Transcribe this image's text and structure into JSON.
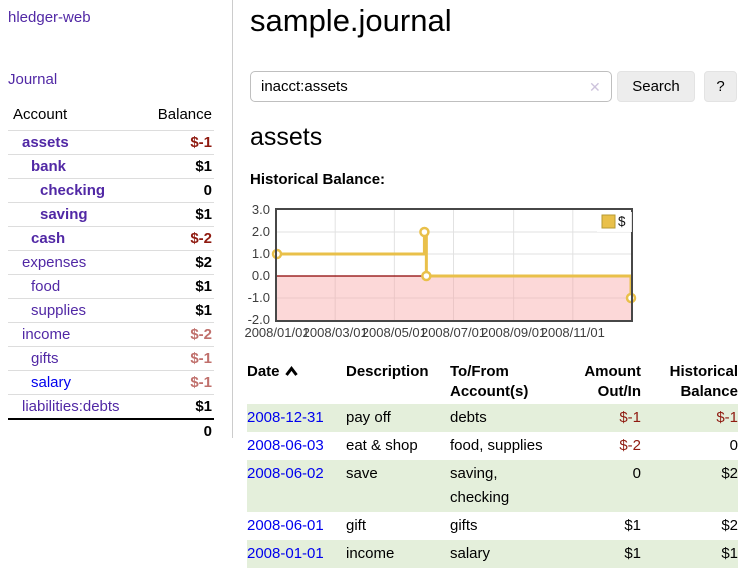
{
  "sidebar": {
    "app_title": "hledger-web",
    "nav": {
      "journal_label": "Journal"
    },
    "accounts_table": {
      "headers": {
        "account": "Account",
        "balance": "Balance"
      },
      "rows": [
        {
          "name": "assets",
          "depth": 1,
          "bold": true,
          "color": "purple",
          "balance": "$-1",
          "bclass": "neg"
        },
        {
          "name": "bank",
          "depth": 2,
          "bold": true,
          "color": "purple",
          "balance": "$1",
          "bclass": ""
        },
        {
          "name": "checking",
          "depth": 3,
          "bold": true,
          "color": "purple",
          "balance": "0",
          "bclass": ""
        },
        {
          "name": "saving",
          "depth": 3,
          "bold": true,
          "color": "purple",
          "balance": "$1",
          "bclass": ""
        },
        {
          "name": "cash",
          "depth": 2,
          "bold": true,
          "color": "purple",
          "balance": "$-2",
          "bclass": "neg"
        },
        {
          "name": "expenses",
          "depth": 1,
          "bold": false,
          "color": "purple",
          "balance": "$2",
          "bclass": ""
        },
        {
          "name": "food",
          "depth": 2,
          "bold": false,
          "color": "purple",
          "balance": "$1",
          "bclass": ""
        },
        {
          "name": "supplies",
          "depth": 2,
          "bold": false,
          "color": "purple",
          "balance": "$1",
          "bclass": ""
        },
        {
          "name": "income",
          "depth": 1,
          "bold": false,
          "color": "purple",
          "balance": "$-2",
          "bclass": "neg-muted"
        },
        {
          "name": "gifts",
          "depth": 2,
          "bold": false,
          "color": "purple",
          "balance": "$-1",
          "bclass": "neg-muted"
        },
        {
          "name": "salary",
          "depth": 2,
          "bold": false,
          "color": "blue",
          "balance": "$-1",
          "bclass": "neg-muted"
        },
        {
          "name": "liabilities:debts",
          "depth": 1,
          "bold": false,
          "color": "purple",
          "balance": "$1",
          "bclass": ""
        }
      ],
      "total": "0"
    }
  },
  "main": {
    "title": "sample.journal",
    "search": {
      "value": "inacct:assets",
      "clear_icon": "✕",
      "button_label": "Search",
      "help_label": "?"
    },
    "account_heading": "assets",
    "chart_label": "Historical Balance:"
  },
  "chart_data": {
    "type": "line",
    "step": true,
    "title": "Historical Balance of assets",
    "series": [
      {
        "name": "$",
        "points": [
          [
            "2008-01-01",
            1
          ],
          [
            "2008-06-01",
            2
          ],
          [
            "2008-06-03",
            0
          ],
          [
            "2008-12-31",
            -1
          ]
        ]
      }
    ],
    "ylim": [
      -2,
      3
    ],
    "y_tick_labels": [
      "3.0",
      "2.0",
      "1.0",
      "0.0",
      "-1.0",
      "-2.0"
    ],
    "y_tick_values": [
      3,
      2,
      1,
      0,
      -1,
      -2
    ],
    "x_tick_labels": [
      "2008/01/01",
      "2008/03/01",
      "2008/05/01",
      "2008/07/01",
      "2008/09/01",
      "2008/11/01"
    ],
    "x_tick_dates": [
      "2008-01-01",
      "2008-03-01",
      "2008-05-01",
      "2008-07-01",
      "2008-09-01",
      "2008-11-01"
    ],
    "x_range": [
      "2008-01-01",
      "2008-12-31"
    ],
    "grid": true,
    "legend": {
      "label": "$",
      "position": "top-right"
    },
    "colors": {
      "line": "#e9c04a",
      "point_fill": "#ffffff",
      "legend_square": "#e9c04a",
      "legend_border": "#b69a33",
      "negative_region": "rgba(249,163,163,0.42)",
      "zero_line": "#8b0000",
      "grid": "#e2e2e2",
      "frame": "#474747"
    }
  },
  "register_table": {
    "headers": [
      {
        "line1": "Date",
        "line2": ""
      },
      {
        "line1": "Description",
        "line2": ""
      },
      {
        "line1": "To/From",
        "line2": "Account(s)"
      },
      {
        "line1": "Amount",
        "line2": "Out/In"
      },
      {
        "line1": "Historical",
        "line2": "Balance"
      }
    ],
    "sort_icon": "chevron-up",
    "rows": [
      {
        "date": "2008-12-31",
        "description": "pay off",
        "accounts": "debts",
        "amount": "$-1",
        "balance": "$-1",
        "shaded": true
      },
      {
        "date": "2008-06-03",
        "description": "eat & shop",
        "accounts": "food, supplies",
        "amount": "$-2",
        "balance": "0",
        "shaded": false
      },
      {
        "date": "2008-06-02",
        "description": "save",
        "accounts": "saving, checking",
        "amount": "0",
        "balance": "$2",
        "shaded": true
      },
      {
        "date": "2008-06-01",
        "description": "gift",
        "accounts": "gifts",
        "amount": "$1",
        "balance": "$2",
        "shaded": false
      },
      {
        "date": "2008-01-01",
        "description": "income",
        "accounts": "salary",
        "amount": "$1",
        "balance": "$1",
        "shaded": true
      }
    ]
  },
  "colors": {
    "link_purple": "#5128a5",
    "link_blue": "#0000ee",
    "negative_strong": "#8f1a10",
    "negative_muted": "#c0706c",
    "row_stripe_green": "#e4efdb",
    "sidebar_divider": "#cccccc",
    "button_bg": "#ededed"
  }
}
